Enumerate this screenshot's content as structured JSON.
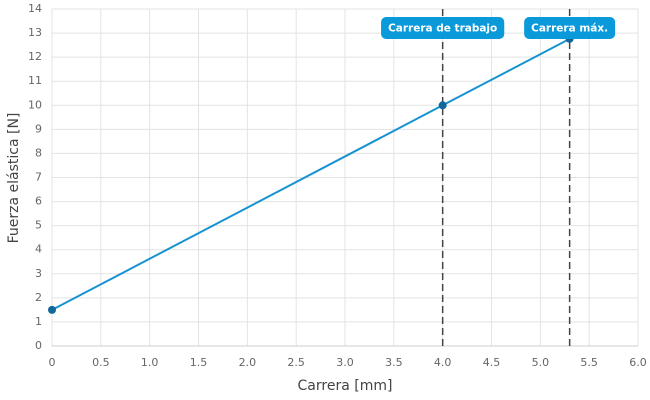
{
  "chart_data": {
    "type": "line",
    "x_label": "Carrera [mm]",
    "y_label": "Fuerza elástica [N]",
    "x": [
      0,
      4,
      5.3
    ],
    "series": [
      {
        "name": "Fuerza elástica",
        "color": "#1893d2",
        "values": [
          1.5,
          10,
          12.76
        ]
      }
    ],
    "annotations": [
      {
        "x": 4,
        "label": "Carrera de trabajo"
      },
      {
        "x": 5.3,
        "label": "Carrera máx."
      }
    ],
    "xlim": [
      0,
      6
    ],
    "xticks": [
      0,
      0.5,
      {
        "value": 1,
        "label": "1.0"
      },
      1.5,
      {
        "value": 2,
        "label": "2.0"
      },
      2.5,
      {
        "value": 3,
        "label": "3.0"
      },
      3.5,
      {
        "value": 4,
        "label": "4.0"
      },
      4.5,
      {
        "value": 5,
        "label": "5.0"
      },
      5.5,
      {
        "value": 6,
        "label": "6.0"
      }
    ],
    "ylim": [
      0,
      14
    ],
    "yticks": [
      0,
      1,
      2,
      3,
      4,
      5,
      6,
      7,
      8,
      9,
      10,
      11,
      12,
      13,
      14
    ],
    "grid": true
  }
}
